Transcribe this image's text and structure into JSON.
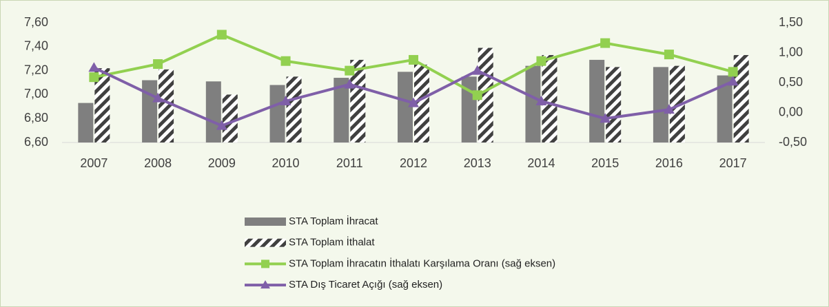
{
  "chart_data": {
    "type": "bar-line",
    "categories": [
      "2007",
      "2008",
      "2009",
      "2010",
      "2011",
      "2012",
      "2013",
      "2014",
      "2015",
      "2016",
      "2017"
    ],
    "series": [
      {
        "name": "STA Toplam İhracat",
        "type": "bar",
        "color": "#7f7f7f",
        "values": [
          6.93,
          7.12,
          7.11,
          7.08,
          7.14,
          7.19,
          7.15,
          7.24,
          7.29,
          7.23,
          7.16
        ]
      },
      {
        "name": "STA Toplam İthalat",
        "type": "bar",
        "pattern": "hatch",
        "color": "#404040",
        "values": [
          7.22,
          7.21,
          7.0,
          7.15,
          7.29,
          7.25,
          7.39,
          7.33,
          7.23,
          7.24,
          7.33
        ]
      },
      {
        "name": "STA Toplam İhracatın İthalatı Karşılama Oranı (sağ eksen)",
        "type": "line",
        "marker": "square",
        "axis": "y2",
        "color": "#92d050",
        "values": [
          0.59,
          0.81,
          1.3,
          0.86,
          0.7,
          0.88,
          0.29,
          0.86,
          1.16,
          0.97,
          0.68
        ]
      },
      {
        "name": "STA Dış Ticaret Açığı (sağ eksen)",
        "type": "line",
        "marker": "triangle",
        "axis": "y2",
        "color": "#7f5fa8",
        "values": [
          0.75,
          0.24,
          -0.22,
          0.19,
          0.47,
          0.16,
          0.7,
          0.19,
          -0.1,
          0.05,
          0.52
        ]
      }
    ],
    "ylim": [
      6.6,
      7.6
    ],
    "yticks": [
      {
        "value": 6.6,
        "label": "6,60"
      },
      {
        "value": 6.8,
        "label": "6,80"
      },
      {
        "value": 7.0,
        "label": "7,00"
      },
      {
        "value": 7.2,
        "label": "7,20"
      },
      {
        "value": 7.4,
        "label": "7,40"
      },
      {
        "value": 7.6,
        "label": "7,60"
      }
    ],
    "y2lim": [
      -0.5,
      1.5
    ],
    "y2ticks": [
      {
        "value": -0.5,
        "label": "-0,50"
      },
      {
        "value": 0,
        "label": "0,00"
      },
      {
        "value": 0.5,
        "label": "0,50"
      },
      {
        "value": 1.0,
        "label": "1,00"
      },
      {
        "value": 1.5,
        "label": "1,50"
      }
    ],
    "grid": false
  }
}
